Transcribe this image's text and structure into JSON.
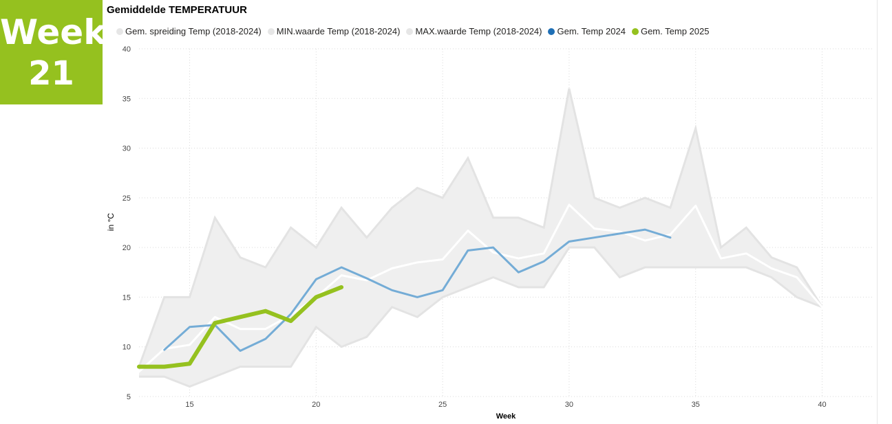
{
  "badge": {
    "line1": "Week",
    "line2": "21"
  },
  "chart_data": {
    "type": "line",
    "title": "Gemiddelde TEMPERATUUR",
    "xlabel": "Week",
    "ylabel": "in °C",
    "xlim": [
      13,
      42
    ],
    "ylim": [
      5,
      40
    ],
    "xticks": [
      15,
      20,
      25,
      30,
      35,
      40
    ],
    "yticks": [
      5,
      10,
      15,
      20,
      25,
      30,
      35,
      40
    ],
    "grid": true,
    "legend_position": "top-left",
    "legend": [
      {
        "name": "Gem. spreiding Temp (2018-2024)",
        "color": "#e6e6e6"
      },
      {
        "name": "MIN.waarde Temp (2018-2024)",
        "color": "#e6e6e6"
      },
      {
        "name": "MAX.waarde Temp (2018-2024)",
        "color": "#e6e6e6"
      },
      {
        "name": "Gem. Temp 2024",
        "color": "#1f6fb5"
      },
      {
        "name": "Gem. Temp 2025",
        "color": "#95c11f"
      }
    ],
    "band": {
      "min_name": "MIN.waarde Temp (2018-2024)",
      "max_name": "MAX.waarde Temp (2018-2024)",
      "x": [
        13,
        14,
        15,
        16,
        17,
        18,
        19,
        20,
        21,
        22,
        23,
        24,
        25,
        26,
        27,
        28,
        29,
        30,
        31,
        32,
        33,
        34,
        35,
        36,
        37,
        38,
        39,
        40
      ],
      "min": [
        7,
        7,
        6,
        7,
        8,
        8,
        8,
        12,
        10,
        11,
        14,
        13,
        15,
        16,
        17,
        16,
        16,
        20,
        20,
        17,
        18,
        18,
        18,
        18,
        18,
        17,
        15,
        14
      ],
      "max": [
        8,
        15,
        15,
        23,
        19,
        18,
        22,
        20,
        24,
        21,
        24,
        26,
        25,
        29,
        23,
        23,
        22,
        36,
        25,
        24,
        25,
        24,
        32,
        20,
        22,
        19,
        18,
        14
      ]
    },
    "series": [
      {
        "name": "Gem. spreiding Temp (2018-2024)",
        "color": "#ffffff",
        "x": [
          13,
          14,
          15,
          16,
          17,
          18,
          19,
          20,
          21,
          22,
          23,
          24,
          25,
          26,
          27,
          28,
          29,
          30,
          31,
          32,
          33,
          34,
          35,
          36,
          37,
          38,
          39,
          40
        ],
        "values": [
          7.5,
          9.8,
          10.2,
          13.0,
          11.8,
          11.8,
          13.2,
          15.0,
          17.2,
          16.7,
          17.9,
          18.5,
          18.8,
          21.7,
          19.5,
          18.9,
          19.4,
          24.3,
          21.9,
          21.6,
          20.7,
          21.3,
          24.2,
          18.9,
          19.4,
          17.9,
          17.0,
          14.0
        ]
      },
      {
        "name": "Gem. Temp 2024",
        "color": "#74acd6",
        "x": [
          14,
          15,
          16,
          17,
          18,
          19,
          20,
          21,
          22,
          23,
          24,
          25,
          26,
          27,
          28,
          29,
          30,
          31,
          32,
          33,
          34
        ],
        "values": [
          9.7,
          12.0,
          12.2,
          9.6,
          10.8,
          13.3,
          16.8,
          18.0,
          16.9,
          15.7,
          15.0,
          15.7,
          19.7,
          20.0,
          17.5,
          18.6,
          20.6,
          21.0,
          21.4,
          21.8,
          21.0
        ]
      },
      {
        "name": "Gem. Temp 2025",
        "color": "#95c11f",
        "x": [
          13,
          14,
          15,
          16,
          17,
          18,
          19,
          20,
          21
        ],
        "values": [
          8.0,
          8.0,
          8.3,
          12.4,
          13.0,
          13.6,
          12.6,
          15.0,
          16.0
        ]
      }
    ]
  }
}
